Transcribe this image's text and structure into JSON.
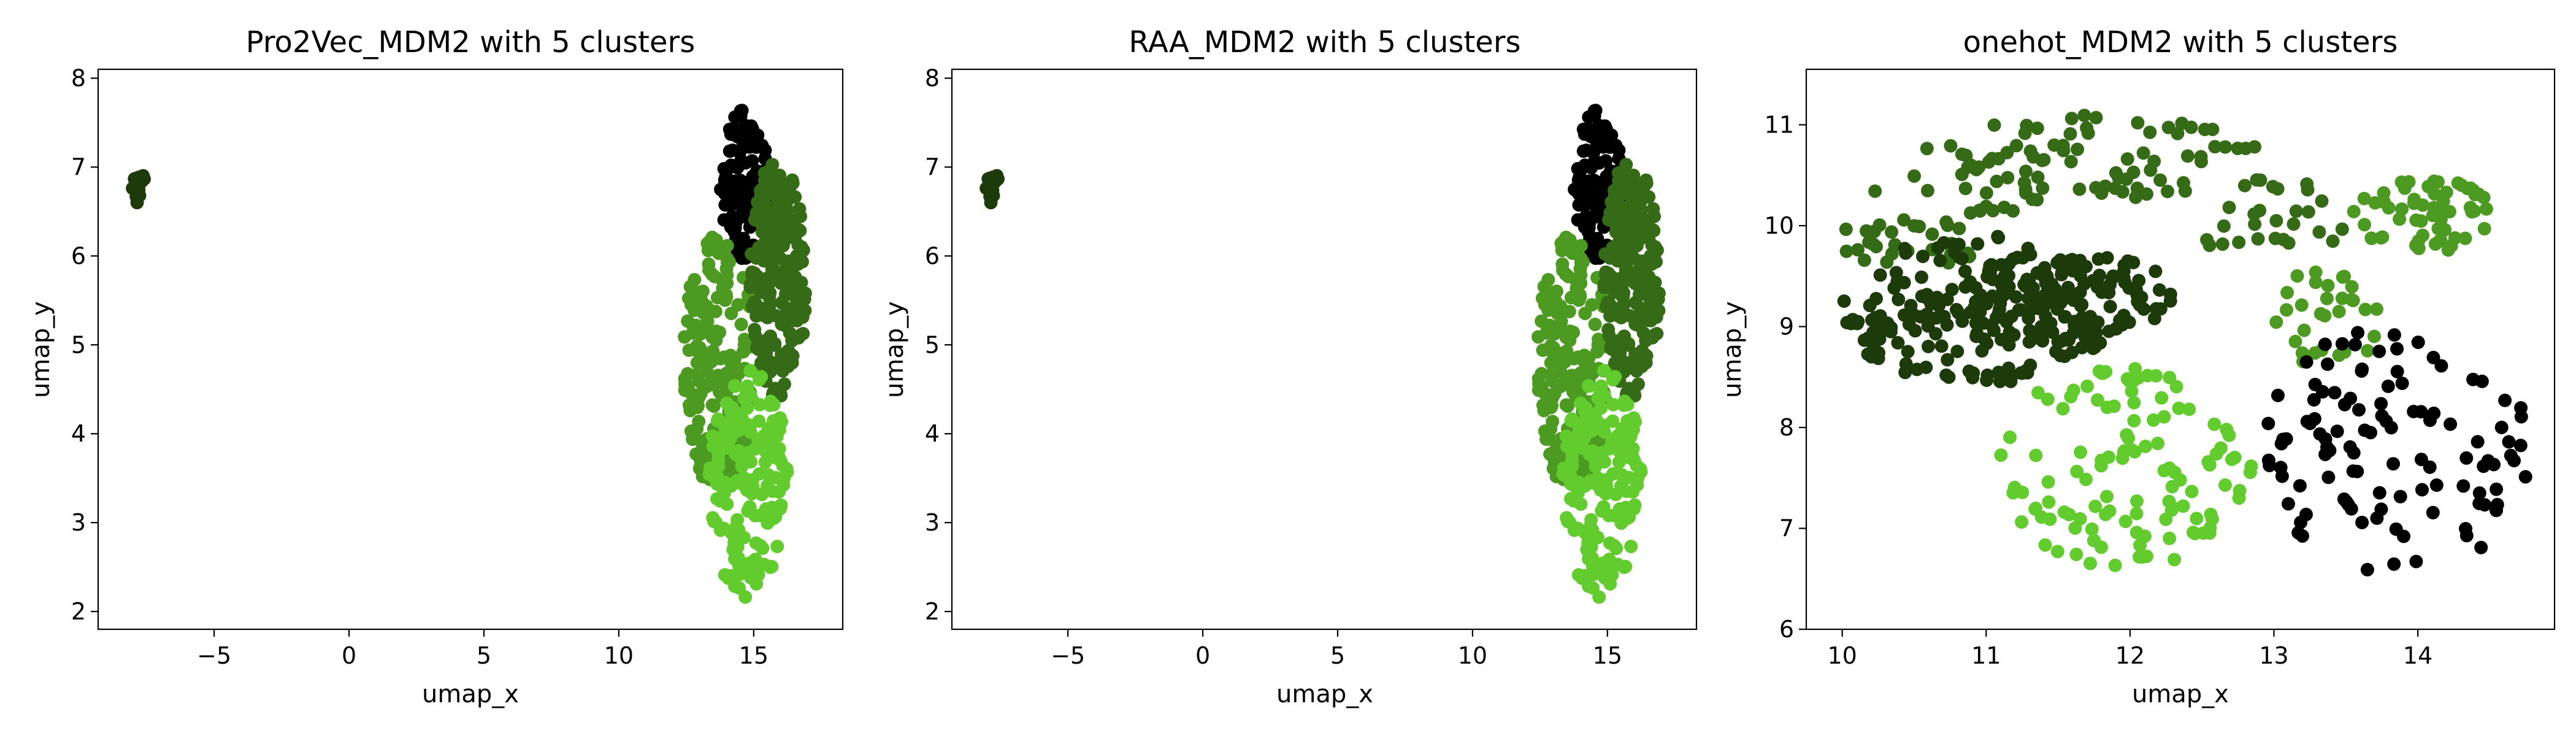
{
  "cluster_colors": [
    "#000000",
    "#1c3a0a",
    "#356b17",
    "#4d9a23",
    "#62cc2e"
  ],
  "chart_data": [
    {
      "type": "scatter",
      "title": "Pro2Vec_MDM2 with 5 clusters",
      "xlabel": "umap_x",
      "ylabel": "umap_y",
      "xlim": [
        -9.3,
        18.3
      ],
      "ylim": [
        1.8,
        8.1
      ],
      "xticks": [
        -5,
        0,
        5,
        10,
        15
      ],
      "yticks": [
        2,
        3,
        4,
        5,
        6,
        7,
        8
      ],
      "grid": false,
      "cluster_regions": [
        {
          "cluster": 1,
          "shape": "ellipse",
          "cx": -7.8,
          "cy": 6.78,
          "rx": 0.28,
          "ry": 0.2,
          "n": 14
        },
        {
          "cluster": 0,
          "shape": "ellipse",
          "cx": 14.7,
          "cy": 6.8,
          "rx": 0.95,
          "ry": 0.85,
          "n": 110
        },
        {
          "cluster": 3,
          "shape": "ellipse",
          "cx": 13.7,
          "cy": 4.8,
          "rx": 1.3,
          "ry": 1.45,
          "n": 190
        },
        {
          "cluster": 2,
          "shape": "ellipse",
          "cx": 15.9,
          "cy": 5.75,
          "rx": 1.05,
          "ry": 1.35,
          "n": 230
        },
        {
          "cluster": 4,
          "shape": "ellipse",
          "cx": 14.8,
          "cy": 3.45,
          "rx": 1.45,
          "ry": 1.3,
          "n": 170
        }
      ]
    },
    {
      "type": "scatter",
      "title": "RAA_MDM2 with 5 clusters",
      "xlabel": "umap_x",
      "ylabel": "umap_y",
      "xlim": [
        -9.3,
        18.3
      ],
      "ylim": [
        1.8,
        8.1
      ],
      "xticks": [
        -5,
        0,
        5,
        10,
        15
      ],
      "yticks": [
        2,
        3,
        4,
        5,
        6,
        7,
        8
      ],
      "grid": false,
      "cluster_regions": [
        {
          "cluster": 1,
          "shape": "ellipse",
          "cx": -7.8,
          "cy": 6.78,
          "rx": 0.28,
          "ry": 0.2,
          "n": 14
        },
        {
          "cluster": 0,
          "shape": "ellipse",
          "cx": 14.7,
          "cy": 6.8,
          "rx": 0.95,
          "ry": 0.85,
          "n": 110
        },
        {
          "cluster": 3,
          "shape": "ellipse",
          "cx": 13.7,
          "cy": 4.8,
          "rx": 1.3,
          "ry": 1.45,
          "n": 190
        },
        {
          "cluster": 2,
          "shape": "ellipse",
          "cx": 15.9,
          "cy": 5.75,
          "rx": 1.05,
          "ry": 1.35,
          "n": 230
        },
        {
          "cluster": 4,
          "shape": "ellipse",
          "cx": 14.8,
          "cy": 3.45,
          "rx": 1.45,
          "ry": 1.3,
          "n": 170
        }
      ]
    },
    {
      "type": "scatter",
      "title": "onehot_MDM2 with 5 clusters",
      "xlabel": "umap_x",
      "ylabel": "umap_y",
      "xlim": [
        9.75,
        14.95
      ],
      "ylim": [
        6.0,
        11.55
      ],
      "xticks": [
        10,
        11,
        12,
        13,
        14
      ],
      "yticks": [
        6,
        7,
        8,
        9,
        10,
        11
      ],
      "grid": false,
      "cluster_regions": [
        {
          "cluster": 2,
          "shape": "ring",
          "cx": 11.75,
          "cy": 9.55,
          "r_inner": 0.85,
          "r_outer": 1.8,
          "arc_deg": [
            10,
            180
          ],
          "n": 150
        },
        {
          "cluster": 1,
          "shape": "ellipse",
          "cx": 10.95,
          "cy": 9.15,
          "rx": 0.95,
          "ry": 0.75,
          "n": 210
        },
        {
          "cluster": 1,
          "shape": "ellipse",
          "cx": 11.75,
          "cy": 9.3,
          "rx": 0.55,
          "ry": 0.4,
          "n": 90
        },
        {
          "cluster": 3,
          "shape": "ellipse",
          "cx": 14.05,
          "cy": 10.1,
          "rx": 0.5,
          "ry": 0.38,
          "n": 60
        },
        {
          "cluster": 3,
          "shape": "ellipse",
          "cx": 13.35,
          "cy": 9.1,
          "rx": 0.45,
          "ry": 0.5,
          "n": 30
        },
        {
          "cluster": 4,
          "shape": "ellipse",
          "cx": 11.95,
          "cy": 7.6,
          "rx": 0.9,
          "ry": 1.0,
          "n": 120
        },
        {
          "cluster": 0,
          "shape": "ellipse",
          "cx": 13.85,
          "cy": 7.75,
          "rx": 0.95,
          "ry": 1.3,
          "n": 110
        }
      ]
    }
  ]
}
